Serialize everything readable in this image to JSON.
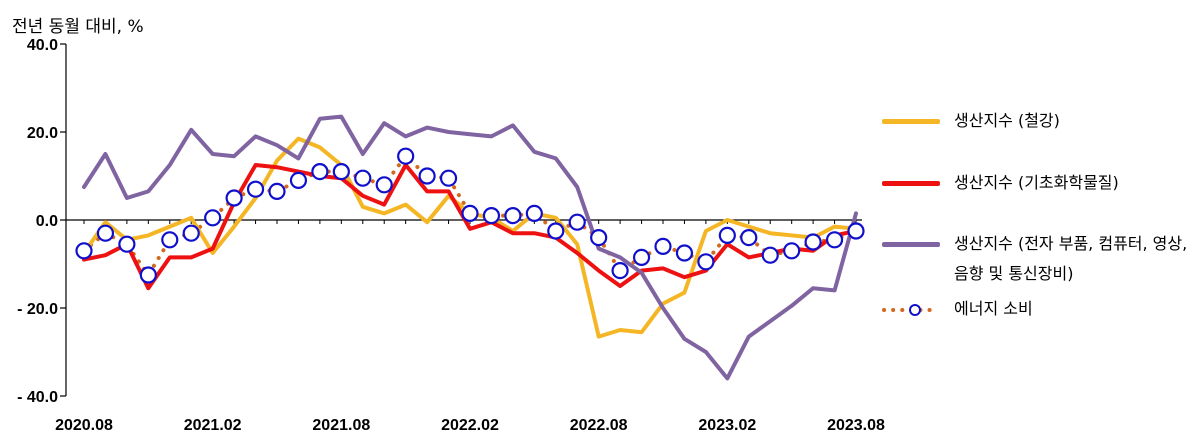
{
  "chart_data": {
    "type": "line",
    "y_unit_label": "전년 동월 대비, %",
    "ylim": [
      -40,
      40
    ],
    "y_ticks": [
      40,
      20,
      0,
      -20,
      -40
    ],
    "y_tick_labels": [
      "40.0",
      "20.0",
      "0.0",
      "- 20.0",
      "- 40.0"
    ],
    "x_tick_labels": [
      "2020.08",
      "2021.02",
      "2021.08",
      "2022.02",
      "2022.08",
      "2023.02",
      "2023.08"
    ],
    "x_tick_indices": [
      0,
      6,
      12,
      18,
      24,
      30,
      36
    ],
    "x": [
      "2020.08",
      "2020.09",
      "2020.10",
      "2020.11",
      "2020.12",
      "2021.01",
      "2021.02",
      "2021.03",
      "2021.04",
      "2021.05",
      "2021.06",
      "2021.07",
      "2021.08",
      "2021.09",
      "2021.10",
      "2021.11",
      "2021.12",
      "2022.01",
      "2022.02",
      "2022.03",
      "2022.04",
      "2022.05",
      "2022.06",
      "2022.07",
      "2022.08",
      "2022.09",
      "2022.10",
      "2022.11",
      "2022.12",
      "2023.01",
      "2023.02",
      "2023.03",
      "2023.04",
      "2023.05",
      "2023.06",
      "2023.07",
      "2023.08"
    ],
    "grid": false,
    "legend_position": "right",
    "series": [
      {
        "name": "생산지수 (철강)",
        "color": "#F5B625",
        "style": "solid",
        "values": [
          -7.5,
          -0.5,
          -4.5,
          -3.5,
          -1.5,
          0.5,
          -7.5,
          -1.5,
          5.0,
          13.5,
          18.5,
          16.5,
          12.5,
          3.0,
          1.5,
          3.5,
          -0.5,
          5.5,
          1.5,
          0.5,
          -2.5,
          1.5,
          0.5,
          -5.5,
          -26.5,
          -25.0,
          -25.5,
          -19.0,
          -16.5,
          -2.5,
          0.0,
          -1.5,
          -3.0,
          -3.5,
          -4.0,
          -1.5,
          -2.0
        ]
      },
      {
        "name": "생산지수 (기초화학물질)",
        "color": "#EE1111",
        "style": "solid",
        "values": [
          -9.0,
          -8.0,
          -5.5,
          -15.5,
          -8.5,
          -8.5,
          -6.5,
          4.0,
          12.5,
          12.0,
          11.0,
          10.0,
          9.5,
          5.5,
          3.5,
          12.5,
          6.5,
          6.5,
          -2.0,
          -0.5,
          -3.0,
          -3.0,
          -4.0,
          -7.5,
          -11.5,
          -15.0,
          -11.5,
          -11.0,
          -13.0,
          -11.5,
          -5.5,
          -8.5,
          -7.5,
          -6.5,
          -7.0,
          -3.5,
          -2.5
        ]
      },
      {
        "name": "생산지수 (전자 부품, 컴퓨터, 영상, 음향 및 통신장비)",
        "color": "#8064A2",
        "style": "solid",
        "values": [
          7.5,
          15.0,
          5.0,
          6.5,
          12.5,
          20.5,
          15.0,
          14.5,
          19.0,
          17.0,
          14.0,
          23.0,
          23.5,
          15.0,
          22.0,
          19.0,
          21.0,
          20.0,
          19.5,
          19.0,
          21.5,
          15.5,
          14.0,
          7.5,
          -6.5,
          -8.5,
          -12.0,
          -20.0,
          -27.0,
          -30.0,
          -36.0,
          -26.5,
          -23.0,
          -19.5,
          -15.5,
          -16.0,
          1.5
        ]
      },
      {
        "name": "에너지 소비",
        "color": "#D2691E",
        "marker_color": "#1010CC",
        "style": "dotted-markers",
        "values": [
          -7.0,
          -3.0,
          -5.5,
          -12.5,
          -4.5,
          -3.0,
          0.5,
          5.0,
          7.0,
          6.5,
          9.0,
          11.0,
          11.0,
          9.5,
          8.0,
          14.5,
          10.0,
          9.5,
          1.5,
          1.0,
          1.0,
          1.5,
          -2.5,
          -0.5,
          -4.0,
          -11.5,
          -8.5,
          -6.0,
          -7.5,
          -9.5,
          -3.5,
          -4.0,
          -8.0,
          -7.0,
          -5.0,
          -4.5,
          -2.5
        ]
      }
    ]
  }
}
